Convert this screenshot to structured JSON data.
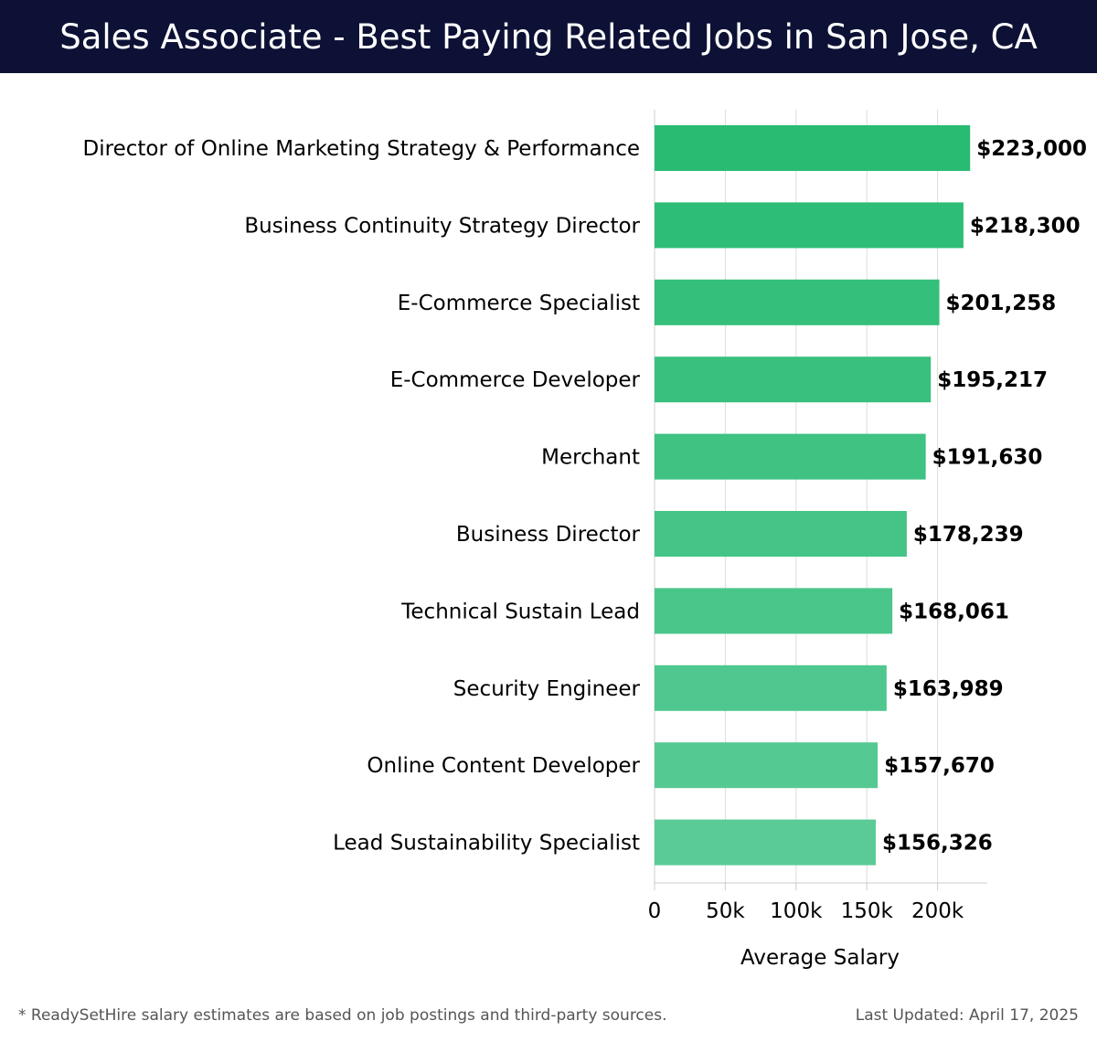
{
  "header": {
    "title": "Sales Associate - Best Paying Related Jobs in San Jose, CA"
  },
  "chart_data": {
    "type": "bar",
    "orientation": "horizontal",
    "title": "Sales Associate - Best Paying Related Jobs in San Jose, CA",
    "xlabel": "Average Salary",
    "ylabel": "",
    "xlim": [
      0,
      235000
    ],
    "grid": true,
    "categories": [
      "Director of Online Marketing Strategy & Performance",
      "Business Continuity Strategy Director",
      "E-Commerce Specialist",
      "E-Commerce Developer",
      "Merchant",
      "Business Director",
      "Technical Sustain Lead",
      "Security Engineer",
      "Online Content Developer",
      "Lead Sustainability Specialist"
    ],
    "values": [
      223000,
      218300,
      201258,
      195217,
      191630,
      178239,
      168061,
      163989,
      157670,
      156326
    ],
    "value_labels": [
      "$223,000",
      "$218,300",
      "$201,258",
      "$195,217",
      "$191,630",
      "$178,239",
      "$168,061",
      "$163,989",
      "$157,670",
      "$156,326"
    ],
    "x_ticks": [
      0,
      50000,
      100000,
      150000,
      200000
    ],
    "x_tick_labels": [
      "0",
      "50k",
      "100k",
      "150k",
      "200k"
    ],
    "colors": {
      "bar_start": "#29bb72",
      "bar_end": "#5acb96",
      "grid": "#dddddd",
      "axis": "#cccccc",
      "text": "#000000"
    }
  },
  "footer": {
    "note": "* ReadySetHire salary estimates are based on job postings and third-party sources.",
    "updated": "Last Updated: April 17, 2025"
  }
}
